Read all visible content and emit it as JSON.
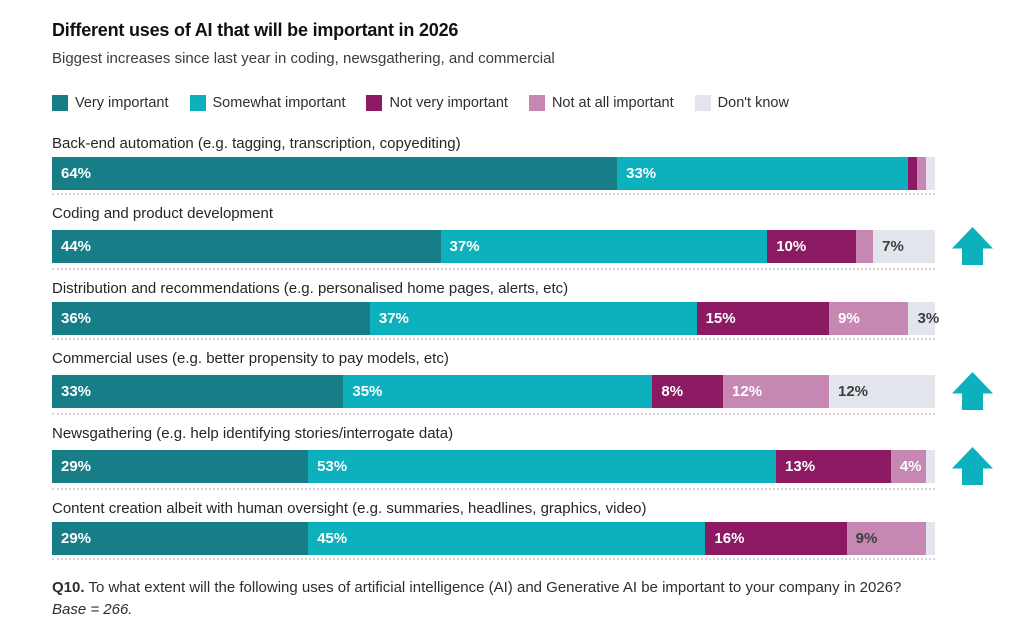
{
  "title": "Different uses of AI that will be important in 2026",
  "subtitle": "Biggest increases since last year in coding, newsgathering, and commercial",
  "colors": {
    "very_important": "#177E88",
    "somewhat_important": "#0DB1BD",
    "not_very_important": "#8B1A63",
    "not_at_all_important": "#C688B3",
    "dont_know": "#E2E5EC",
    "arrow": "#0DB1BD",
    "bar_label_light": "#FFFFFF",
    "bar_label_dark": "#3D3D3D"
  },
  "legend": [
    {
      "label": "Very important",
      "color": "#177E88"
    },
    {
      "label": "Somewhat important",
      "color": "#0DB1BD"
    },
    {
      "label": "Not very important",
      "color": "#8B1A63"
    },
    {
      "label": "Not at all important",
      "color": "#C688B3"
    },
    {
      "label": "Don't know",
      "color": "#E2E5EC"
    }
  ],
  "chart_data": {
    "type": "bar",
    "variant": "horizontal-stacked",
    "unit": "percent",
    "xlim": [
      0,
      100
    ],
    "legend_position": "top",
    "series_names": [
      "Very important",
      "Somewhat important",
      "Not very important",
      "Not at all important",
      "Don't know"
    ],
    "arrow_meaning": "biggest increases since last year",
    "rows": [
      {
        "category": "Back-end automation (e.g. tagging, transcription, copyediting)",
        "arrow": false,
        "segments": [
          {
            "series": "Very important",
            "value": 64,
            "label": "64%",
            "color": "#177E88",
            "label_color": "#FFFFFF"
          },
          {
            "series": "Somewhat important",
            "value": 33,
            "label": "33%",
            "color": "#0DB1BD",
            "label_color": "#FFFFFF"
          },
          {
            "series": "Not very important",
            "value": 1,
            "label": "",
            "color": "#8B1A63",
            "label_color": ""
          },
          {
            "series": "Not at all important",
            "value": 1,
            "label": "",
            "color": "#C688B3",
            "label_color": ""
          },
          {
            "series": "Don't know",
            "value": 1,
            "label": "",
            "color": "#E2E5EC",
            "label_color": ""
          }
        ]
      },
      {
        "category": "Coding and product development",
        "arrow": true,
        "segments": [
          {
            "series": "Very important",
            "value": 44,
            "label": "44%",
            "color": "#177E88",
            "label_color": "#FFFFFF"
          },
          {
            "series": "Somewhat important",
            "value": 37,
            "label": "37%",
            "color": "#0DB1BD",
            "label_color": "#FFFFFF"
          },
          {
            "series": "Not very important",
            "value": 10,
            "label": "10%",
            "color": "#8B1A63",
            "label_color": "#FFFFFF"
          },
          {
            "series": "Not at all important",
            "value": 2,
            "label": "",
            "color": "#C688B3",
            "label_color": ""
          },
          {
            "series": "Don't know",
            "value": 7,
            "label": "7%",
            "color": "#E2E5EC",
            "label_color": "#3D3D3D"
          }
        ]
      },
      {
        "category": "Distribution and recommendations (e.g. personalised home pages, alerts, etc)",
        "arrow": false,
        "segments": [
          {
            "series": "Very important",
            "value": 36,
            "label": "36%",
            "color": "#177E88",
            "label_color": "#FFFFFF"
          },
          {
            "series": "Somewhat important",
            "value": 37,
            "label": "37%",
            "color": "#0DB1BD",
            "label_color": "#FFFFFF"
          },
          {
            "series": "Not very important",
            "value": 15,
            "label": "15%",
            "color": "#8B1A63",
            "label_color": "#FFFFFF"
          },
          {
            "series": "Not at all important",
            "value": 9,
            "label": "9%",
            "color": "#C688B3",
            "label_color": "#FFFFFF"
          },
          {
            "series": "Don't know",
            "value": 3,
            "label": "3%",
            "color": "#E2E5EC",
            "label_color": "#3D3D3D"
          }
        ]
      },
      {
        "category": "Commercial uses (e.g. better propensity to pay models, etc)",
        "arrow": true,
        "segments": [
          {
            "series": "Very important",
            "value": 33,
            "label": "33%",
            "color": "#177E88",
            "label_color": "#FFFFFF"
          },
          {
            "series": "Somewhat important",
            "value": 35,
            "label": "35%",
            "color": "#0DB1BD",
            "label_color": "#FFFFFF"
          },
          {
            "series": "Not very important",
            "value": 8,
            "label": "8%",
            "color": "#8B1A63",
            "label_color": "#FFFFFF"
          },
          {
            "series": "Not at all important",
            "value": 12,
            "label": "12%",
            "color": "#C688B3",
            "label_color": "#FFFFFF"
          },
          {
            "series": "Don't know",
            "value": 12,
            "label": "12%",
            "color": "#E2E5EC",
            "label_color": "#3D3D3D"
          }
        ]
      },
      {
        "category": "Newsgathering (e.g. help identifying stories/interrogate data)",
        "arrow": true,
        "segments": [
          {
            "series": "Very important",
            "value": 29,
            "label": "29%",
            "color": "#177E88",
            "label_color": "#FFFFFF"
          },
          {
            "series": "Somewhat important",
            "value": 53,
            "label": "53%",
            "color": "#0DB1BD",
            "label_color": "#FFFFFF"
          },
          {
            "series": "Not very important",
            "value": 13,
            "label": "13%",
            "color": "#8B1A63",
            "label_color": "#FFFFFF"
          },
          {
            "series": "Not at all important",
            "value": 4,
            "label": "4%",
            "color": "#C688B3",
            "label_color": "#FFFFFF"
          },
          {
            "series": "Don't know",
            "value": 1,
            "label": "",
            "color": "#E2E5EC",
            "label_color": ""
          }
        ]
      },
      {
        "category": "Content creation albeit with human oversight (e.g. summaries, headlines, graphics, video)",
        "arrow": false,
        "segments": [
          {
            "series": "Very important",
            "value": 29,
            "label": "29%",
            "color": "#177E88",
            "label_color": "#FFFFFF"
          },
          {
            "series": "Somewhat important",
            "value": 45,
            "label": "45%",
            "color": "#0DB1BD",
            "label_color": "#FFFFFF"
          },
          {
            "series": "Not very important",
            "value": 16,
            "label": "16%",
            "color": "#8B1A63",
            "label_color": "#FFFFFF"
          },
          {
            "series": "Not at all important",
            "value": 9,
            "label": "9%",
            "color": "#C688B3",
            "label_color": "#3D3D3D"
          },
          {
            "series": "Don't know",
            "value": 1,
            "label": "",
            "color": "#E2E5EC",
            "label_color": ""
          }
        ]
      }
    ]
  },
  "footnote": {
    "q_label": "Q10.",
    "q_text": "To what extent will the following uses of artificial intelligence (AI) and Generative AI be important to your company in 2026?",
    "base_note": "Base = 266."
  }
}
